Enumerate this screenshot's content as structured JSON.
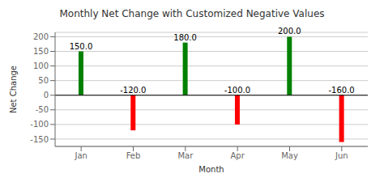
{
  "chart_data": {
    "type": "bar",
    "title": "Monthly Net Change with Customized Negative Values",
    "xlabel": "Month",
    "ylabel": "Net Change",
    "categories": [
      "Jan",
      "Feb",
      "Mar",
      "Apr",
      "May",
      "Jun"
    ],
    "values": [
      150.0,
      -120.0,
      180.0,
      -100.0,
      200.0,
      -160.0
    ],
    "value_labels": [
      "150.0",
      "-120.0",
      "180.0",
      "-100.0",
      "200.0",
      "-160.0"
    ],
    "colors": [
      "green",
      "red",
      "green",
      "red",
      "green",
      "red"
    ],
    "ylim": [
      -175,
      215
    ],
    "yticks": [
      -150,
      -100,
      -50,
      0,
      50,
      100,
      150,
      200
    ],
    "grid": true,
    "data_labels": true
  }
}
